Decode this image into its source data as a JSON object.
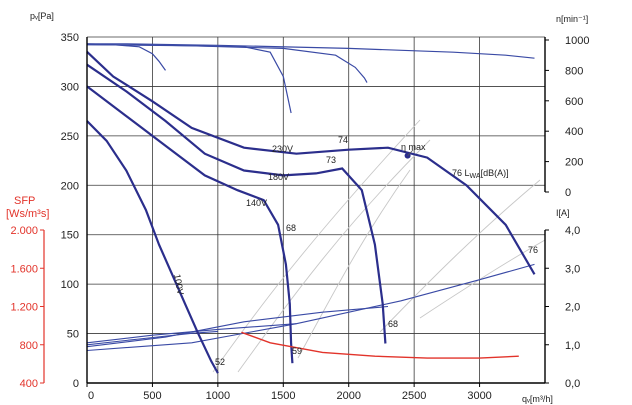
{
  "chart_data": {
    "type": "line",
    "axes": {
      "x": {
        "label": "qᵥ[m³/h]",
        "range": [
          0,
          3500
        ],
        "ticks": [
          "0",
          "500",
          "1000",
          "1500",
          "2000",
          "2500",
          "3000"
        ]
      },
      "y_pressure": {
        "label": "pᵥ[Pa]",
        "range": [
          0,
          350
        ],
        "ticks": [
          "0",
          "50",
          "100",
          "150",
          "200",
          "250",
          "300",
          "350"
        ]
      },
      "y_speed": {
        "label": "n[min⁻¹]",
        "range": [
          0,
          1000
        ],
        "ticks": [
          "0",
          "200",
          "400",
          "600",
          "800",
          "1000"
        ]
      },
      "y_current": {
        "label": "I[A]",
        "range": [
          0,
          4
        ],
        "ticks": [
          "0,0",
          "1,0",
          "2,0",
          "3,0",
          "4,0"
        ]
      },
      "y_sfp": {
        "label": "SFP",
        "unit": "[Ws/m³s]",
        "range": [
          400,
          2000
        ],
        "ticks": [
          "400",
          "800",
          "1.200",
          "1.600",
          "2.000"
        ],
        "color": "#e2332a"
      }
    },
    "grid": true,
    "series": [
      {
        "name": "230V",
        "color": "#2b2e8c",
        "x": [
          0,
          200,
          500,
          800,
          1200,
          1600,
          2000,
          2300,
          2600,
          2900,
          3200,
          3420
        ],
        "y": [
          335,
          310,
          285,
          258,
          238,
          232,
          236,
          238,
          228,
          200,
          160,
          110
        ]
      },
      {
        "name": "180V",
        "color": "#2b2e8c",
        "x": [
          0,
          300,
          600,
          900,
          1200,
          1500,
          1750,
          1950,
          2100,
          2200,
          2260,
          2280
        ],
        "y": [
          322,
          295,
          265,
          232,
          215,
          210,
          212,
          217,
          195,
          140,
          80,
          40
        ]
      },
      {
        "name": "140V",
        "color": "#2b2e8c",
        "x": [
          0,
          300,
          600,
          900,
          1150,
          1350,
          1460,
          1520,
          1550,
          1560,
          1570
        ],
        "y": [
          300,
          270,
          240,
          210,
          195,
          185,
          160,
          120,
          80,
          40,
          20
        ]
      },
      {
        "name": "100V",
        "color": "#2b2e8c",
        "x": [
          0,
          150,
          300,
          450,
          550,
          650,
          750,
          850,
          950,
          1000
        ],
        "y": [
          265,
          245,
          215,
          175,
          140,
          110,
          80,
          50,
          22,
          10
        ]
      }
    ],
    "speed_curves": [
      {
        "x": [
          0,
          300,
          1000,
          2000,
          2800,
          3200,
          3420
        ],
        "y": [
          975,
          975,
          965,
          945,
          920,
          900,
          880
        ]
      },
      {
        "x": [
          0,
          600,
          1200,
          1400,
          1500,
          1560
        ],
        "y": [
          970,
          965,
          955,
          920,
          760,
          520
        ]
      },
      {
        "x": [
          0,
          800,
          1500,
          1900,
          2050,
          2120,
          2140
        ],
        "y": [
          970,
          962,
          945,
          900,
          820,
          750,
          720
        ]
      },
      {
        "x": [
          0,
          200,
          400,
          500,
          550,
          600
        ],
        "y": [
          975,
          970,
          955,
          910,
          860,
          800
        ]
      }
    ],
    "current_curves": [
      {
        "x": [
          0,
          800,
          1600,
          2400,
          3000,
          3420
        ],
        "y": [
          0.85,
          1.05,
          1.55,
          2.15,
          2.7,
          3.1
        ]
      },
      {
        "x": [
          0,
          600,
          1200,
          1800,
          2300
        ],
        "y": [
          0.95,
          1.2,
          1.6,
          1.85,
          2.0
        ]
      },
      {
        "x": [
          0,
          500,
          1000,
          1600
        ],
        "y": [
          1.05,
          1.25,
          1.4,
          1.55
        ]
      },
      {
        "x": [
          0,
          400,
          800,
          1000
        ],
        "y": [
          1.0,
          1.15,
          1.3,
          1.35
        ]
      }
    ],
    "sfp_curve": {
      "color": "#e2332a",
      "x": [
        1180,
        1400,
        1800,
        2200,
        2600,
        3000,
        3300
      ],
      "y": [
        930,
        820,
        720,
        680,
        660,
        660,
        680
      ]
    },
    "annotations": {
      "max_label": "η  max",
      "lwa_label": "76 L",
      "lwa_sub": "WA",
      "lwa_unit": "[dB(A)]",
      "contour_labels": [
        "74",
        "73",
        "68",
        "68",
        "76",
        "52",
        "59",
        "100V"
      ]
    }
  }
}
